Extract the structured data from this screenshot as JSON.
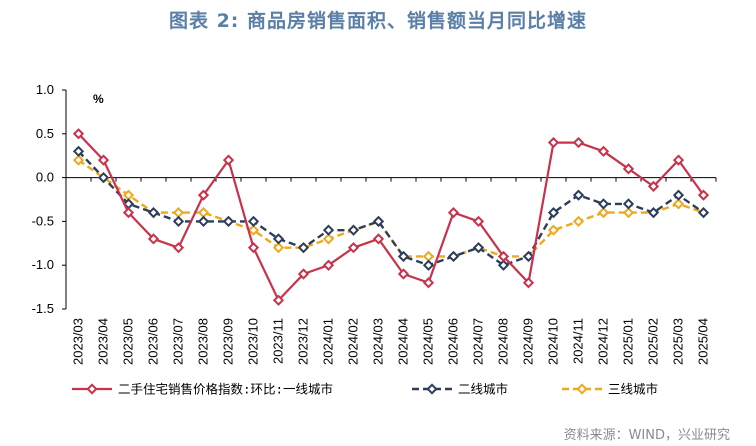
{
  "header": {
    "title": "图表 2:  商品房销售面积、销售额当月同比增速"
  },
  "source": "资料来源：WIND，兴业研究",
  "chart_data": {
    "type": "line",
    "unit": "%",
    "ylim": [
      -1.5,
      1.0
    ],
    "yticks": [
      1.0,
      0.5,
      0.0,
      -0.5,
      -1.0,
      -1.5
    ],
    "ytick_labels": [
      "1.0",
      "0.5",
      "0.0",
      "-0.5",
      "-1.0",
      "-1.5"
    ],
    "grid": false,
    "legend_position": "bottom",
    "categories": [
      "2023/03",
      "2023/04",
      "2023/05",
      "2023/06",
      "2023/07",
      "2023/08",
      "2023/09",
      "2023/10",
      "2023/11",
      "2023/12",
      "2024/01",
      "2024/02",
      "2024/03",
      "2024/04",
      "2024/05",
      "2024/06",
      "2024/07",
      "2024/08",
      "2024/09",
      "2024/10",
      "2024/11",
      "2024/12",
      "2025/01",
      "2025/02",
      "2025/03",
      "2025/04"
    ],
    "series": [
      {
        "name": "二手住宅销售价格指数:环比:一线城市",
        "color": "#c8324a",
        "style": "solid",
        "values": [
          0.5,
          0.2,
          -0.4,
          -0.7,
          -0.8,
          -0.2,
          0.2,
          -0.8,
          -1.4,
          -1.1,
          -1.0,
          -0.8,
          -0.7,
          -1.1,
          -1.2,
          -0.4,
          -0.5,
          -0.9,
          -1.2,
          0.4,
          0.4,
          0.3,
          0.1,
          -0.1,
          0.2,
          -0.2
        ]
      },
      {
        "name": "二线城市",
        "color": "#2c3e5c",
        "style": "dashed",
        "values": [
          0.3,
          0.0,
          -0.3,
          -0.4,
          -0.5,
          -0.5,
          -0.5,
          -0.5,
          -0.7,
          -0.8,
          -0.6,
          -0.6,
          -0.5,
          -0.9,
          -1.0,
          -0.9,
          -0.8,
          -1.0,
          -0.9,
          -0.4,
          -0.2,
          -0.3,
          -0.3,
          -0.4,
          -0.2,
          -0.4
        ]
      },
      {
        "name": "三线城市",
        "color": "#f0a81c",
        "style": "dashed",
        "values": [
          0.2,
          0.0,
          -0.2,
          -0.4,
          -0.4,
          -0.4,
          -0.5,
          -0.6,
          -0.8,
          -0.8,
          -0.7,
          -0.6,
          -0.5,
          -0.9,
          -0.9,
          -0.9,
          -0.8,
          -0.9,
          -0.9,
          -0.6,
          -0.5,
          -0.4,
          -0.4,
          -0.4,
          -0.3,
          -0.4
        ]
      }
    ]
  }
}
